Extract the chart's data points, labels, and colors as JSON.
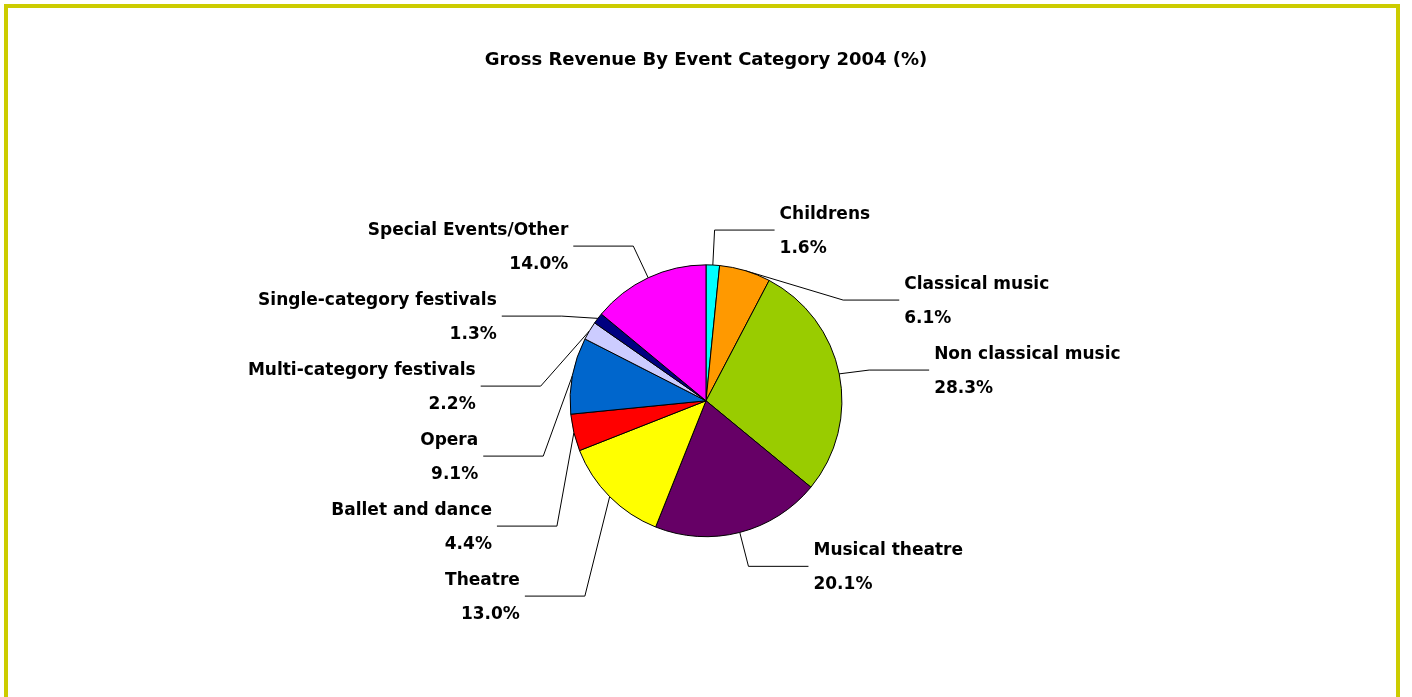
{
  "chart_data": {
    "type": "pie",
    "title": "Gross Revenue By Event Category 2004 (%)",
    "categories": [
      "Childrens",
      "Classical music",
      "Non classical music",
      "Musical theatre",
      "Theatre",
      "Ballet and dance",
      "Opera",
      "Multi-category festivals",
      "Single-category festivals",
      "Special Events/Other"
    ],
    "values": [
      1.6,
      6.1,
      28.3,
      20.1,
      13.0,
      4.4,
      9.1,
      2.2,
      1.3,
      14.0
    ],
    "value_labels": [
      "1.6%",
      "6.1%",
      "28.3%",
      "20.1%",
      "13.0%",
      "4.4%",
      "9.1%",
      "2.2%",
      "1.3%",
      "14.0%"
    ],
    "colors": [
      "#00ffff",
      "#ff9900",
      "#99cc00",
      "#660066",
      "#ffff00",
      "#ff0000",
      "#0066cc",
      "#ccccff",
      "#000080",
      "#ff00ff"
    ],
    "legend": false
  }
}
